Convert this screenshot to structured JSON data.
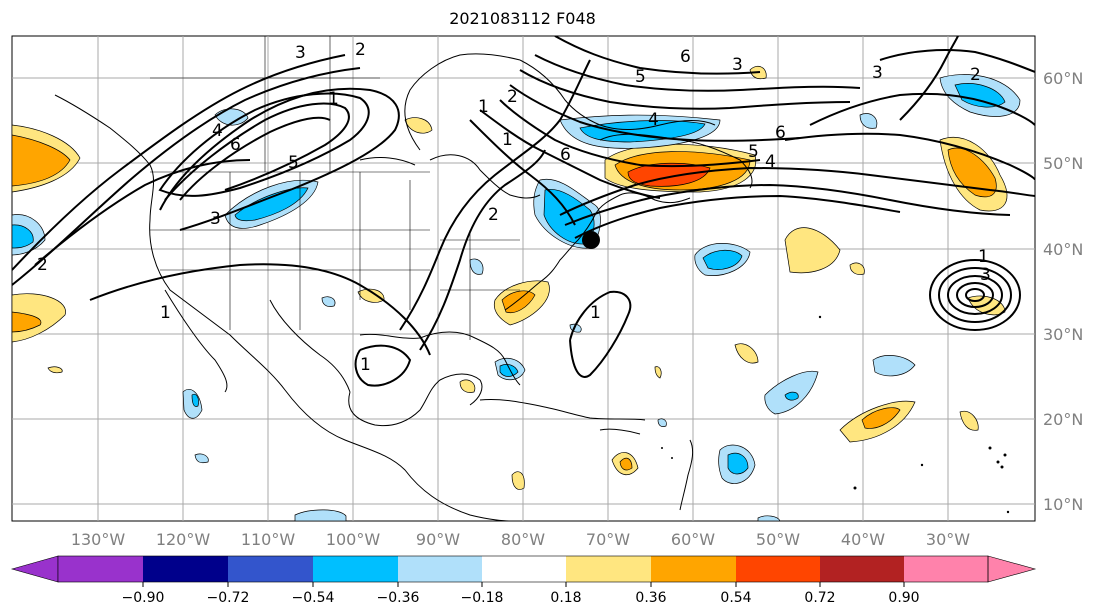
{
  "title": "2021083112 F048",
  "map": {
    "lon_labels": [
      "130°W",
      "120°W",
      "110°W",
      "100°W",
      "90°W",
      "80°W",
      "70°W",
      "60°W",
      "50°W",
      "40°W",
      "30°W"
    ],
    "lat_labels": [
      "60°N",
      "50°N",
      "40°N",
      "30°N",
      "20°N",
      "10°N"
    ],
    "contour_labels": [
      "3",
      "2",
      "1",
      "1",
      "2",
      "6",
      "5",
      "4",
      "3",
      "6",
      "3",
      "6",
      "2",
      "4",
      "5",
      "6",
      "5",
      "4",
      "3",
      "1",
      "2",
      "1",
      "1",
      "1",
      "1",
      "2",
      "3"
    ],
    "marker": "storm-center-dot"
  },
  "colorbar": {
    "ticks": [
      "−0.90",
      "−0.72",
      "−0.54",
      "−0.36",
      "−0.18",
      "0.18",
      "0.36",
      "0.54",
      "0.72",
      "0.90"
    ],
    "colors": [
      "#9932cc",
      "#00008b",
      "#3355cc",
      "#00bfff",
      "#b0e0fa",
      "#ffffff",
      "#ffe680",
      "#ffa500",
      "#ff4500",
      "#b22222",
      "#ff82ab"
    ],
    "extend": "both"
  },
  "colors": {
    "land_outline": "#000000",
    "contours": "#000000",
    "gridlines": "#a9a9a9",
    "positive_field": "#ffa500",
    "negative_field": "#00bfff"
  }
}
